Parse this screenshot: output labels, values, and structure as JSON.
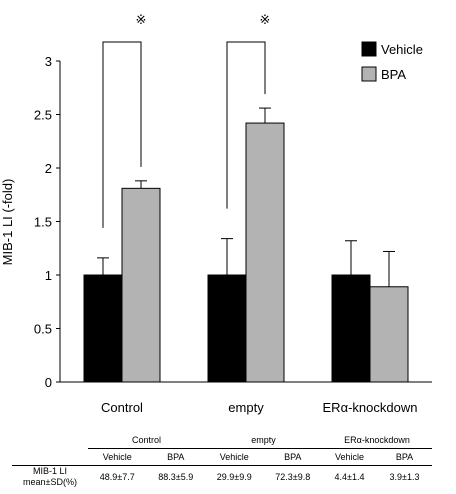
{
  "chart_data": {
    "type": "bar",
    "categories": [
      "Control",
      "empty",
      "ERα-knockdown"
    ],
    "series": [
      {
        "name": "Vehicle",
        "color": "#000000",
        "values": [
          1.0,
          1.0,
          1.0
        ],
        "errors": [
          0.16,
          0.34,
          0.32
        ]
      },
      {
        "name": "BPA",
        "color": "#b3b3b3",
        "values": [
          1.81,
          2.42,
          0.89
        ],
        "errors": [
          0.07,
          0.14,
          0.33
        ]
      }
    ],
    "ylabel": "MIB-1 LI (-fold)",
    "ylim": [
      0,
      3
    ],
    "yticks": [
      "0",
      "0.5",
      "1",
      "1.5",
      "2",
      "2.5",
      "3"
    ],
    "ytick_values": [
      0,
      0.5,
      1,
      1.5,
      2,
      2.5,
      3
    ],
    "legend": "top-right",
    "significance": [
      {
        "category": "Control",
        "mark": "※"
      },
      {
        "category": "empty",
        "mark": "※"
      }
    ]
  },
  "table": {
    "groups": [
      "Control",
      "empty",
      "ERα-knockdown"
    ],
    "subheaders": [
      "Vehicle",
      "BPA",
      "Vehicle",
      "BPA",
      "Vehicle",
      "BPA"
    ],
    "row_label_line1": "MIB-1 LI",
    "row_label_line2": "mean±SD(%)",
    "values": [
      "48.9±7.7",
      "88.3±5.9",
      "29.9±9.9",
      "72.3±9.8",
      "4.4±1.4",
      "3.9±1.3"
    ]
  }
}
